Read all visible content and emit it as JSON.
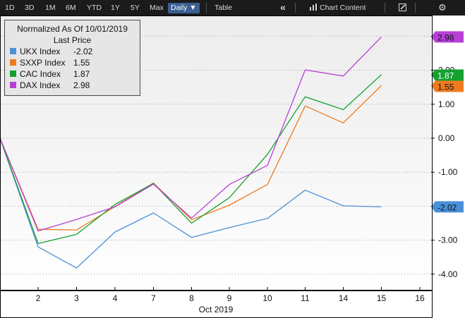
{
  "toolbar": {
    "periods": [
      "1D",
      "3D",
      "1M",
      "6M",
      "YTD",
      "1Y",
      "5Y",
      "Max"
    ],
    "frequency": "Daily ▼",
    "table": "Table",
    "collapse_icon": "double-chevron-left-icon",
    "chart_icon": "bar-chart-icon",
    "chart_content": "Chart Content",
    "edit_icon": "pencil-icon",
    "settings_icon": "gear-icon"
  },
  "legend": {
    "title": "Normalized As Of 10/01/2019",
    "subtitle": "Last Price"
  },
  "chart_data": {
    "type": "line",
    "title": "Normalized As Of 10/01/2019",
    "x_ticks": [
      "2",
      "3",
      "4",
      "7",
      "8",
      "9",
      "10",
      "11",
      "14",
      "15",
      "16"
    ],
    "x_axis_label": "Oct 2019",
    "x": [
      "1",
      "2",
      "3",
      "4",
      "7",
      "8",
      "9",
      "10",
      "11",
      "14",
      "15"
    ],
    "y_ticks": [
      "-4.00",
      "-3.00",
      "-2.00",
      "-1.00",
      "0.00",
      "1.00",
      "2.00",
      "3.00"
    ],
    "ylim": [
      -4.55,
      3.2
    ],
    "series": [
      {
        "name": "UKX Index",
        "last_price": "-2.02",
        "color": "#4a90d9",
        "values": [
          0,
          -3.2,
          -3.82,
          -2.76,
          -2.2,
          -2.92,
          -2.63,
          -2.36,
          -1.53,
          -1.99,
          -2.02
        ]
      },
      {
        "name": "SXXP Index",
        "last_price": "1.55",
        "color": "#f07b1f",
        "values": [
          0,
          -2.68,
          -2.7,
          -2.01,
          -1.32,
          -2.4,
          -1.97,
          -1.36,
          0.95,
          0.45,
          1.55
        ]
      },
      {
        "name": "CAC Index",
        "last_price": "1.87",
        "color": "#15a030",
        "values": [
          0,
          -3.1,
          -2.83,
          -1.95,
          -1.33,
          -2.5,
          -1.75,
          -0.48,
          1.22,
          0.84,
          1.87
        ]
      },
      {
        "name": "DAX Index",
        "last_price": "2.98",
        "color": "#b73fd6",
        "values": [
          0,
          -2.73,
          -2.39,
          -2.02,
          -1.35,
          -2.35,
          -1.36,
          -0.8,
          2.01,
          1.83,
          2.98
        ]
      }
    ]
  }
}
